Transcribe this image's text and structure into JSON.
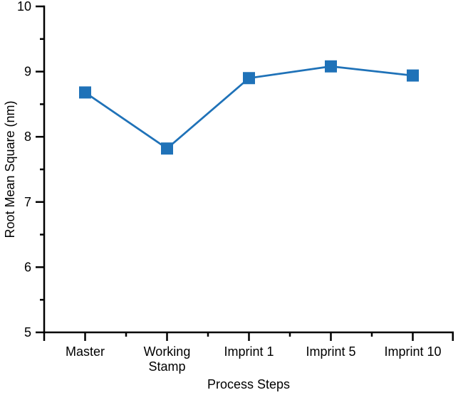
{
  "chart_data": {
    "type": "line",
    "title": "",
    "categories": [
      "Master",
      "Working\nStamp",
      "Imprint 1",
      "Imprint 5",
      "Imprint 10"
    ],
    "series": [
      {
        "name": "Root Mean Square",
        "values": [
          8.68,
          7.82,
          8.9,
          9.08,
          8.94
        ]
      }
    ],
    "xlabel": "Process Steps",
    "ylabel": "Root Mean Square (nm)",
    "ylim": [
      5,
      10
    ],
    "y_major_ticks": [
      5,
      6,
      7,
      8,
      9,
      10
    ],
    "y_minor_ticks": [
      5.5,
      6.5,
      7.5,
      8.5,
      9.5
    ],
    "grid": false,
    "legend": "none",
    "marker": "square",
    "line_color": "#1F72B8",
    "marker_color": "#1F72B8",
    "axis_color": "#000000",
    "text_color": "#000000"
  }
}
